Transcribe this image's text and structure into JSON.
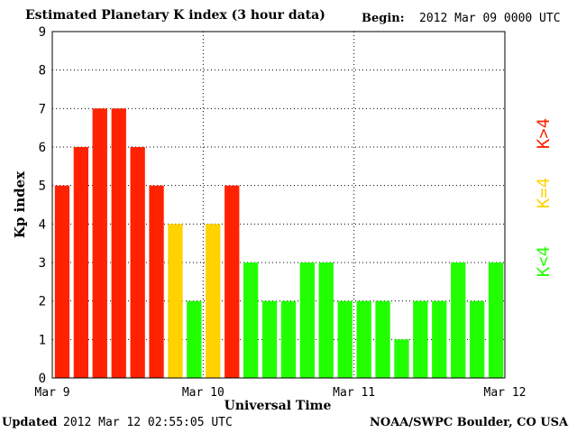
{
  "header": {
    "title": "Estimated Planetary K index (3 hour data)",
    "begin_label": "Begin:",
    "begin_value": "2012 Mar 09 0000 UTC"
  },
  "footer": {
    "updated_label": "Updated",
    "updated_value": "2012 Mar 12 02:55:05 UTC",
    "source": "NOAA/SWPC Boulder, CO USA"
  },
  "legend": {
    "above": "K>4",
    "equal": "K=4",
    "below": "K<4"
  },
  "colors": {
    "above": "#ff2200",
    "equal": "#ffd200",
    "below": "#22ff00",
    "grid": "#000000",
    "background": "#ffffff"
  },
  "chart_data": {
    "type": "bar",
    "title": "Estimated Planetary K index (3 hour data)",
    "xlabel": "Universal Time",
    "ylabel": "Kp index",
    "ylim": [
      0,
      9
    ],
    "yticks": [
      "0",
      "1",
      "2",
      "3",
      "4",
      "5",
      "6",
      "7",
      "8",
      "9"
    ],
    "xticks": [
      "Mar 9",
      "Mar 10",
      "Mar 11",
      "Mar 12"
    ],
    "grid": true,
    "categories": [
      "Mar 09 00:00",
      "Mar 09 03:00",
      "Mar 09 06:00",
      "Mar 09 09:00",
      "Mar 09 12:00",
      "Mar 09 15:00",
      "Mar 09 18:00",
      "Mar 09 21:00",
      "Mar 10 00:00",
      "Mar 10 03:00",
      "Mar 10 06:00",
      "Mar 10 09:00",
      "Mar 10 12:00",
      "Mar 10 15:00",
      "Mar 10 18:00",
      "Mar 10 21:00",
      "Mar 11 00:00",
      "Mar 11 03:00",
      "Mar 11 06:00",
      "Mar 11 09:00",
      "Mar 11 12:00",
      "Mar 11 15:00",
      "Mar 11 18:00",
      "Mar 11 21:00"
    ],
    "values": [
      5,
      6,
      7,
      7,
      6,
      5,
      4,
      2,
      4,
      5,
      3,
      2,
      2,
      3,
      3,
      2,
      2,
      2,
      1,
      2,
      2,
      3,
      2,
      3
    ]
  }
}
